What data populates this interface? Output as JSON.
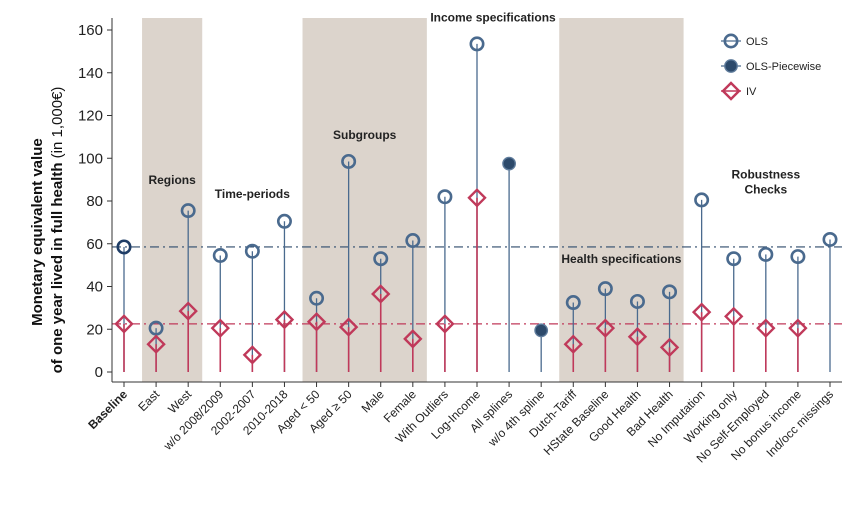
{
  "chart_data": {
    "type": "dot-plot",
    "ylabel_line1": "Monetary equivalent value",
    "ylabel_line2": "of one year lived in full health",
    "ylabel_unit": "(in 1,000€)",
    "ylim": [
      0,
      165
    ],
    "yticks": [
      0,
      20,
      40,
      60,
      80,
      100,
      120,
      140,
      160
    ],
    "reference_lines": {
      "ols": 58.5,
      "iv": 22.5
    },
    "categories": [
      {
        "label": "Baseline",
        "bold": true
      },
      {
        "label": "East"
      },
      {
        "label": "West"
      },
      {
        "label": "w/o 2008/2009"
      },
      {
        "label": "2002-2007"
      },
      {
        "label": "2010-2018"
      },
      {
        "label": "Aged < 50"
      },
      {
        "label": "Aged ≥ 50"
      },
      {
        "label": "Male"
      },
      {
        "label": "Female"
      },
      {
        "label": "With Outliers"
      },
      {
        "label": "Log-Income"
      },
      {
        "label": "All splines"
      },
      {
        "label": "w/o 4th spline"
      },
      {
        "label": "Dutch-Tariff"
      },
      {
        "label": "HState Baseline"
      },
      {
        "label": "Good Health"
      },
      {
        "label": "Bad Health"
      },
      {
        "label": "No Imputation"
      },
      {
        "label": "Working only"
      },
      {
        "label": "No Self-Employed"
      },
      {
        "label": "No bonus income"
      },
      {
        "label": "Ind/occ missings"
      }
    ],
    "series": [
      {
        "name": "OLS",
        "marker": "hollow-circle",
        "color": "#4a6a8e",
        "values": [
          58.5,
          20.5,
          75.5,
          54.5,
          56.5,
          70.5,
          34.5,
          98.5,
          53,
          61.5,
          82,
          153.5,
          null,
          null,
          32.5,
          39,
          33,
          37.5,
          80.5,
          53,
          55,
          54,
          62
        ]
      },
      {
        "name": "OLS-Piecewise",
        "marker": "filled-circle",
        "color": "#2d4a6b",
        "values": [
          null,
          null,
          null,
          null,
          null,
          null,
          null,
          null,
          null,
          null,
          null,
          null,
          97.5,
          19.5,
          null,
          null,
          null,
          null,
          null,
          null,
          null,
          null,
          null
        ]
      },
      {
        "name": "IV",
        "marker": "hollow-diamond",
        "color": "#c0395a",
        "values": [
          22.5,
          13,
          28.5,
          20.5,
          8,
          24.5,
          23.5,
          21,
          36.5,
          15.5,
          22.5,
          81.5,
          null,
          null,
          13,
          20.5,
          16.5,
          11.5,
          28,
          26,
          20.5,
          20.5,
          null
        ]
      }
    ],
    "groups": [
      {
        "label": "Regions",
        "shaded": true,
        "from": 1,
        "to": 2,
        "label_value": 88
      },
      {
        "label": "Time-periods",
        "shaded": false,
        "from": 3,
        "to": 5,
        "label_value": 81.5
      },
      {
        "label": "Subgroups",
        "shaded": true,
        "from": 6,
        "to": 9,
        "label_value": 109
      },
      {
        "label": "Income specifications",
        "shaded": false,
        "from": 10,
        "to": 13,
        "label_value": 164
      },
      {
        "label": "Health specifications",
        "shaded": true,
        "from": 14,
        "to": 17,
        "label_value": 51
      },
      {
        "label": "Robustness\nChecks",
        "shaded": false,
        "from": 18,
        "to": 22,
        "label_value": 90.5
      }
    ],
    "colors": {
      "band": "#dcd4cc",
      "ols": "#4a6a8e",
      "ols_piecewise": "#2d4a6b",
      "ols_baseline": "#1f3d66",
      "iv": "#c0395a",
      "ref_ols": "#2d4a6b",
      "ref_iv": "#c0395a"
    },
    "legend": {
      "placement": "top-right",
      "entries": [
        {
          "name": "OLS",
          "marker": "hollow-circle"
        },
        {
          "name": "OLS-Piecewise",
          "marker": "filled-circle"
        },
        {
          "name": "IV",
          "marker": "hollow-diamond"
        }
      ]
    }
  }
}
